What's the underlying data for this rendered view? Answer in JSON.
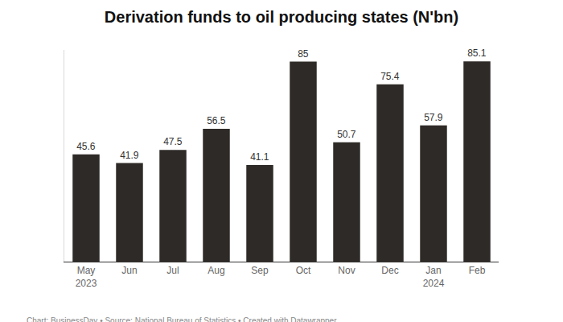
{
  "chart_data": {
    "type": "bar",
    "title": "Derivation funds to oil producing states (N'bn)",
    "categories": [
      "May\n2023",
      "Jun",
      "Jul",
      "Aug",
      "Sep",
      "Oct",
      "Nov",
      "Dec",
      "Jan\n2024",
      "Feb"
    ],
    "values": [
      45.6,
      41.9,
      47.5,
      56.5,
      41.1,
      85,
      50.7,
      75.4,
      57.9,
      85.1
    ],
    "color": "#2e2a27",
    "ylim": [
      0,
      90
    ],
    "yticks": [
      0
    ],
    "grid": false,
    "data_labels": true,
    "tick_labels": "x",
    "caption": "Chart: BusinessDay • Source: National Bureau of Statistics • Created with Datawrapper"
  }
}
